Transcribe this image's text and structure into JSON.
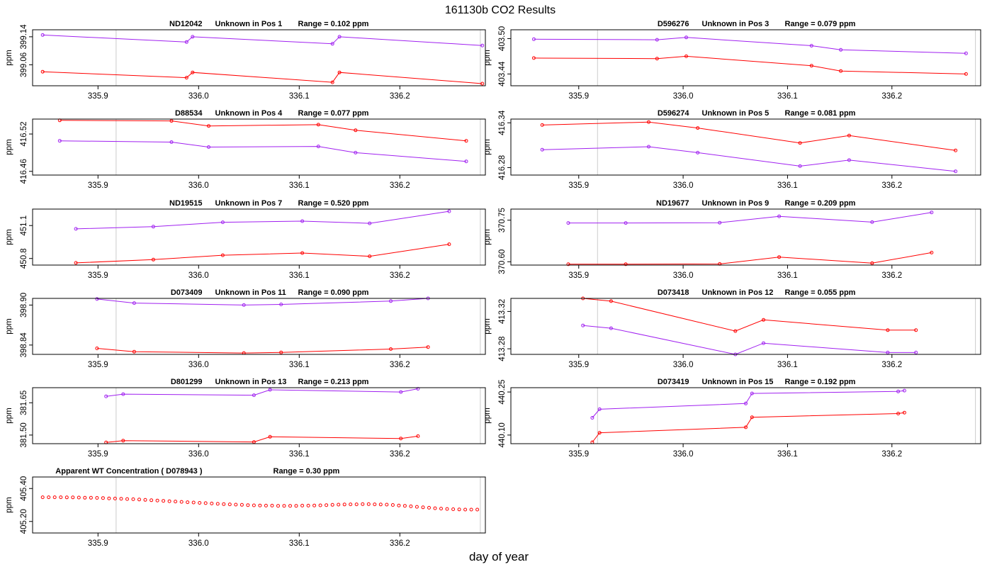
{
  "title": "161130b  CO2 Results",
  "xlabel": "day of year",
  "colors": {
    "red": "#ff0000",
    "purple": "#a020f0",
    "ref": "#cccccc"
  },
  "chart_data": [
    {
      "type": "line",
      "label": "ND12042",
      "desc": "Unknown in Pos 1",
      "range_text": "Range =  0.102 ppm",
      "ylabel": "ppm",
      "ylim": [
        399.0,
        399.16
      ],
      "yticks": [
        "399.06",
        "399.14"
      ],
      "ytick_values": [
        399.06,
        399.14
      ],
      "series": [
        {
          "name": "purple",
          "x": [
            335.845,
            335.988,
            335.994,
            336.133,
            336.14,
            336.282
          ],
          "y": [
            399.145,
            399.125,
            399.14,
            399.12,
            399.14,
            399.115
          ]
        },
        {
          "name": "red",
          "x": [
            335.845,
            335.988,
            335.994,
            336.133,
            336.14,
            336.282
          ],
          "y": [
            399.04,
            399.023,
            399.038,
            399.01,
            399.038,
            399.006
          ]
        }
      ]
    },
    {
      "type": "line",
      "label": "D596276",
      "desc": "Unknown in Pos 3",
      "range_text": "Range =  0.079 ppm",
      "ylabel": "ppm",
      "ylim": [
        403.42,
        403.515
      ],
      "yticks": [
        "403.44",
        "403.50"
      ],
      "ytick_values": [
        403.44,
        403.5
      ],
      "series": [
        {
          "name": "purple",
          "x": [
            335.857,
            335.975,
            336.003,
            336.123,
            336.151,
            336.271
          ],
          "y": [
            403.499,
            403.498,
            403.502,
            403.488,
            403.481,
            403.475
          ]
        },
        {
          "name": "red",
          "x": [
            335.857,
            335.975,
            336.003,
            336.123,
            336.151,
            336.271
          ],
          "y": [
            403.467,
            403.466,
            403.47,
            403.454,
            403.445,
            403.44
          ]
        }
      ]
    },
    {
      "type": "line",
      "label": "D88534",
      "desc": "Unknown in Pos 4",
      "range_text": "Range =  0.077 ppm",
      "ylabel": "ppm",
      "ylim": [
        416.454,
        416.544
      ],
      "yticks": [
        "416.46",
        "416.52"
      ],
      "ytick_values": [
        416.46,
        416.52
      ],
      "series": [
        {
          "name": "red",
          "x": [
            335.862,
            335.973,
            336.01,
            336.119,
            336.156,
            336.266
          ],
          "y": [
            416.542,
            416.541,
            416.533,
            416.535,
            416.526,
            416.509
          ]
        },
        {
          "name": "purple",
          "x": [
            335.862,
            335.973,
            336.01,
            336.119,
            336.156,
            336.266
          ],
          "y": [
            416.509,
            416.507,
            416.499,
            416.5,
            416.49,
            416.476
          ]
        }
      ]
    },
    {
      "type": "line",
      "label": "D596274",
      "desc": "Unknown in Pos 5",
      "range_text": "Range =  0.081 ppm",
      "ylabel": "ppm",
      "ylim": [
        416.27,
        416.345
      ],
      "yticks": [
        "416.28",
        "416.34"
      ],
      "ytick_values": [
        416.28,
        416.34
      ],
      "series": [
        {
          "name": "red",
          "x": [
            335.865,
            335.967,
            336.014,
            336.112,
            336.159,
            336.261
          ],
          "y": [
            416.337,
            416.341,
            416.333,
            416.313,
            416.323,
            416.303
          ]
        },
        {
          "name": "purple",
          "x": [
            335.865,
            335.967,
            336.014,
            336.112,
            336.159,
            336.261
          ],
          "y": [
            416.304,
            416.308,
            416.3,
            416.282,
            416.29,
            416.275
          ]
        }
      ]
    },
    {
      "type": "line",
      "label": "ND19515",
      "desc": "Unknown in Pos 7",
      "range_text": "Range =  0.520 ppm",
      "ylabel": "ppm",
      "ylim": [
        450.74,
        451.25
      ],
      "yticks": [
        "450.8",
        "451.1"
      ],
      "ytick_values": [
        450.8,
        451.1
      ],
      "series": [
        {
          "name": "purple",
          "x": [
            335.878,
            335.955,
            336.024,
            336.103,
            336.17,
            336.249
          ],
          "y": [
            451.07,
            451.09,
            451.13,
            451.14,
            451.12,
            451.23
          ]
        },
        {
          "name": "red",
          "x": [
            335.878,
            335.955,
            336.024,
            336.103,
            336.17,
            336.249
          ],
          "y": [
            450.76,
            450.79,
            450.83,
            450.85,
            450.82,
            450.93
          ]
        }
      ]
    },
    {
      "type": "line",
      "label": "ND19677",
      "desc": "Unknown in Pos 9",
      "range_text": "Range =  0.209 ppm",
      "ylabel": "ppm",
      "ylim": [
        370.588,
        370.79
      ],
      "yticks": [
        "370.60",
        "370.75"
      ],
      "ytick_values": [
        370.6,
        370.75
      ],
      "series": [
        {
          "name": "purple",
          "x": [
            335.89,
            335.945,
            336.035,
            336.092,
            336.181,
            336.238
          ],
          "y": [
            370.74,
            370.74,
            370.741,
            370.764,
            370.743,
            370.778
          ]
        },
        {
          "name": "red",
          "x": [
            335.89,
            335.945,
            336.035,
            336.092,
            336.181,
            336.238
          ],
          "y": [
            370.591,
            370.591,
            370.592,
            370.617,
            370.595,
            370.633
          ]
        }
      ]
    },
    {
      "type": "line",
      "label": "D073409",
      "desc": "Unknown in Pos 11",
      "range_text": "Range =  0.090 ppm",
      "ylabel": "ppm",
      "ylim": [
        398.826,
        398.91
      ],
      "yticks": [
        "398.84",
        "398.90"
      ],
      "ytick_values": [
        398.84,
        398.9
      ],
      "series": [
        {
          "name": "purple",
          "x": [
            335.899,
            335.936,
            336.045,
            336.082,
            336.191,
            336.228
          ],
          "y": [
            398.909,
            398.903,
            398.9,
            398.901,
            398.906,
            398.91
          ]
        },
        {
          "name": "red",
          "x": [
            335.899,
            335.936,
            336.045,
            336.082,
            336.191,
            336.228
          ],
          "y": [
            398.835,
            398.83,
            398.828,
            398.829,
            398.834,
            398.837
          ]
        }
      ]
    },
    {
      "type": "line",
      "label": "D073418",
      "desc": "Unknown in Pos 12",
      "range_text": "Range =  0.055 ppm",
      "ylabel": "ppm",
      "ylim": [
        413.274,
        413.334
      ],
      "yticks": [
        "413.28",
        "413.32"
      ],
      "ytick_values": [
        413.28,
        413.32
      ],
      "series": [
        {
          "name": "red",
          "x": [
            335.904,
            335.931,
            336.05,
            336.077,
            336.196,
            336.223
          ],
          "y": [
            413.334,
            413.331,
            413.299,
            413.311,
            413.3,
            413.3
          ]
        },
        {
          "name": "purple",
          "x": [
            335.904,
            335.931,
            336.05,
            336.077,
            336.196,
            336.223
          ],
          "y": [
            413.305,
            413.302,
            413.274,
            413.286,
            413.276,
            413.276
          ]
        }
      ]
    },
    {
      "type": "line",
      "label": "D801299",
      "desc": "Unknown in Pos 13",
      "range_text": "Range =  0.213 ppm",
      "ylabel": "ppm",
      "ylim": [
        381.46,
        381.72
      ],
      "yticks": [
        "381.50",
        "381.65"
      ],
      "ytick_values": [
        381.5,
        381.65
      ],
      "series": [
        {
          "name": "purple",
          "x": [
            335.908,
            335.925,
            336.055,
            336.071,
            336.201,
            336.218
          ],
          "y": [
            381.68,
            381.69,
            381.685,
            381.71,
            381.7,
            381.715
          ]
        },
        {
          "name": "red",
          "x": [
            335.908,
            335.925,
            336.055,
            336.071,
            336.201,
            336.218
          ],
          "y": [
            381.466,
            381.474,
            381.468,
            381.492,
            381.484,
            381.495
          ]
        }
      ]
    },
    {
      "type": "line",
      "label": "D073419",
      "desc": "Unknown in Pos 15",
      "range_text": "Range =  0.192 ppm",
      "ylabel": "ppm",
      "ylim": [
        440.07,
        440.265
      ],
      "yticks": [
        "440.10",
        "440.25"
      ],
      "ytick_values": [
        440.1,
        440.25
      ],
      "series": [
        {
          "name": "purple",
          "x": [
            335.913,
            335.92,
            336.06,
            336.066,
            336.206,
            336.212
          ],
          "y": [
            440.16,
            440.19,
            440.21,
            440.245,
            440.252,
            440.255
          ]
        },
        {
          "name": "red",
          "x": [
            335.913,
            335.92,
            336.06,
            336.066,
            336.206,
            336.212
          ],
          "y": [
            440.075,
            440.108,
            440.127,
            440.162,
            440.175,
            440.178
          ]
        }
      ]
    },
    {
      "type": "scatter",
      "label": "Apparent WT Concentration ( D078943 )",
      "desc": "",
      "range_text": "Range = 0.30 ppm",
      "ylabel": "ppm",
      "ylim": [
        405.13,
        405.47
      ],
      "yticks": [
        "405.20",
        "405.40"
      ],
      "ytick_values": [
        405.2,
        405.4
      ],
      "series": [
        {
          "name": "red",
          "x": [
            335.845,
            335.851,
            335.857,
            335.863,
            335.869,
            335.875,
            335.881,
            335.887,
            335.893,
            335.899,
            335.905,
            335.911,
            335.917,
            335.923,
            335.929,
            335.935,
            335.941,
            335.947,
            335.953,
            335.959,
            335.965,
            335.971,
            335.977,
            335.983,
            335.989,
            335.995,
            336.001,
            336.007,
            336.013,
            336.019,
            336.025,
            336.031,
            336.037,
            336.043,
            336.049,
            336.055,
            336.061,
            336.067,
            336.073,
            336.079,
            336.085,
            336.091,
            336.097,
            336.103,
            336.109,
            336.115,
            336.121,
            336.127,
            336.133,
            336.139,
            336.145,
            336.151,
            336.157,
            336.163,
            336.169,
            336.175,
            336.181,
            336.187,
            336.193,
            336.199,
            336.205,
            336.211,
            336.217,
            336.223,
            336.229,
            336.235,
            336.241,
            336.247,
            336.253,
            336.259,
            336.265,
            336.271,
            336.277
          ],
          "y": [
            405.347,
            405.347,
            405.347,
            405.347,
            405.346,
            405.346,
            405.345,
            405.344,
            405.344,
            405.343,
            405.342,
            405.34,
            405.339,
            405.338,
            405.336,
            405.335,
            405.333,
            405.331,
            405.329,
            405.327,
            405.325,
            405.323,
            405.321,
            405.319,
            405.317,
            405.315,
            405.313,
            405.311,
            405.309,
            405.307,
            405.305,
            405.304,
            405.302,
            405.301,
            405.299,
            405.298,
            405.297,
            405.296,
            405.296,
            405.295,
            405.295,
            405.295,
            405.295,
            405.296,
            405.296,
            405.297,
            405.298,
            405.299,
            405.301,
            405.302,
            405.303,
            405.304,
            405.304,
            405.305,
            405.305,
            405.304,
            405.303,
            405.302,
            405.3,
            405.297,
            405.295,
            405.292,
            405.289,
            405.286,
            405.283,
            405.28,
            405.278,
            405.276,
            405.274,
            405.273,
            405.272,
            405.272,
            405.272
          ]
        }
      ]
    }
  ],
  "xaxis": {
    "range": [
      335.835,
      336.285
    ],
    "ticks": [
      "335.9",
      "336.0",
      "336.1",
      "336.2"
    ],
    "tick_values": [
      335.9,
      336.0,
      336.1,
      336.2
    ],
    "ref_lines": [
      335.918,
      336.28
    ]
  }
}
